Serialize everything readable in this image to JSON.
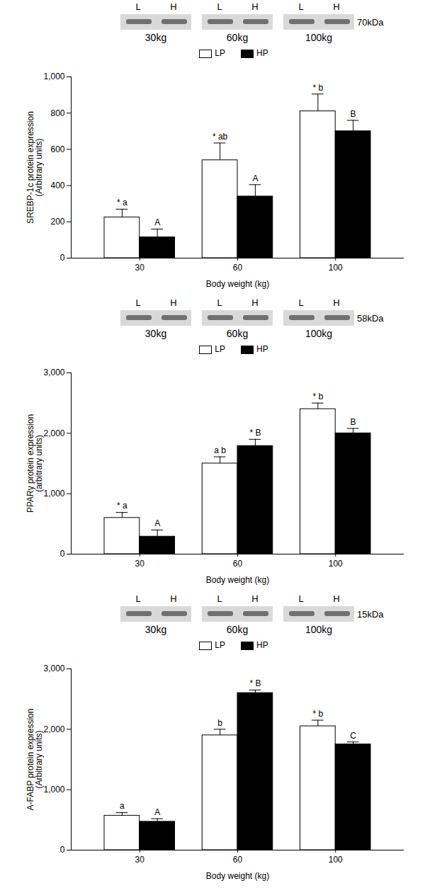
{
  "chart_data": [
    {
      "type": "bar",
      "blot": {
        "lanes": [
          "L",
          "H",
          "L",
          "H",
          "L",
          "H"
        ],
        "groups": [
          "30kg",
          "60kg",
          "100kg"
        ],
        "size_label": "70kDa"
      },
      "categories": [
        "30",
        "60",
        "100"
      ],
      "series": [
        {
          "name": "LP",
          "color": "#ffffff",
          "values": [
            225,
            540,
            810
          ],
          "errors": [
            45,
            95,
            95
          ],
          "letters": [
            "* a",
            "* ab",
            "* b"
          ]
        },
        {
          "name": "HP",
          "color": "#000000",
          "values": [
            115,
            340,
            700
          ],
          "errors": [
            45,
            65,
            60
          ],
          "letters": [
            "A",
            "A",
            "B"
          ]
        }
      ],
      "xlabel": "Body weight (kg)",
      "ylabel": "SREBP-1c protein expression\n(Arbitrary units)",
      "ylim": [
        0,
        1000
      ],
      "yticks": [
        0,
        200,
        400,
        600,
        800,
        1000
      ]
    },
    {
      "type": "bar",
      "blot": {
        "lanes": [
          "L",
          "H",
          "L",
          "H",
          "L",
          "H"
        ],
        "groups": [
          "30kg",
          "60kg",
          "100kg"
        ],
        "size_label": "58kDa"
      },
      "categories": [
        "30",
        "60",
        "100"
      ],
      "series": [
        {
          "name": "LP",
          "color": "#ffffff",
          "values": [
            600,
            1500,
            2400
          ],
          "errors": [
            90,
            110,
            100
          ],
          "letters": [
            "* a",
            "a b",
            "* b"
          ]
        },
        {
          "name": "HP",
          "color": "#000000",
          "values": [
            290,
            1790,
            2000
          ],
          "errors": [
            110,
            110,
            80
          ],
          "letters": [
            "A",
            "* B",
            "B"
          ]
        }
      ],
      "xlabel": "Body weight (kg)",
      "ylabel": "PPARγ protein expression\n(arbitrary units)",
      "ylim": [
        0,
        3000
      ],
      "yticks": [
        0,
        1000,
        2000,
        3000
      ]
    },
    {
      "type": "bar",
      "blot": {
        "lanes": [
          "L",
          "H",
          "L",
          "H",
          "L",
          "H"
        ],
        "groups": [
          "30kg",
          "60kg",
          "100kg"
        ],
        "size_label": "15kDa"
      },
      "categories": [
        "30",
        "60",
        "100"
      ],
      "series": [
        {
          "name": "LP",
          "color": "#ffffff",
          "values": [
            570,
            1900,
            2050
          ],
          "errors": [
            50,
            100,
            100
          ],
          "letters": [
            "a",
            "b",
            "* b"
          ]
        },
        {
          "name": "HP",
          "color": "#000000",
          "values": [
            470,
            2600,
            1750
          ],
          "errors": [
            50,
            50,
            40
          ],
          "letters": [
            "A",
            "* B",
            "C"
          ]
        }
      ],
      "xlabel": "Body weight (kg)",
      "ylabel": "A-FABP protein expression\n(Arbitrary units)",
      "ylim": [
        0,
        3000
      ],
      "yticks": [
        0,
        1000,
        2000,
        3000
      ]
    }
  ]
}
